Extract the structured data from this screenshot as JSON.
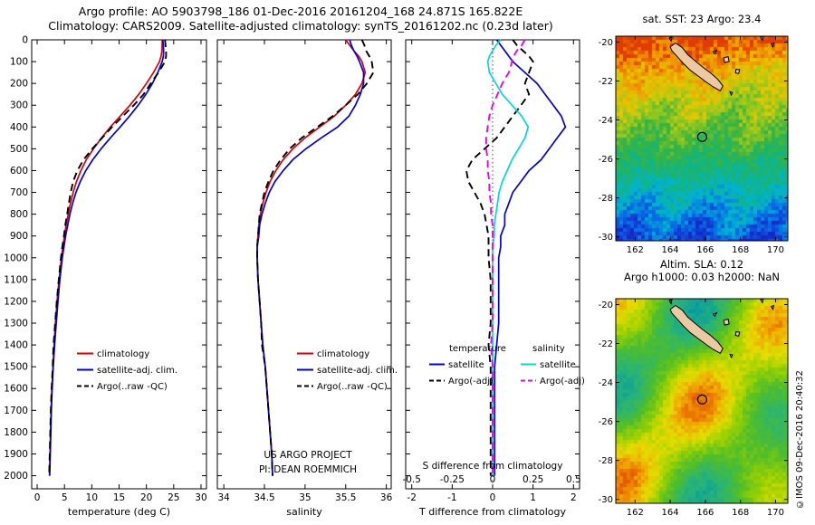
{
  "header": {
    "line1": "Argo profile: AO 5903798_186 01-Dec-2016 20161204_168 24.871S 165.822E",
    "line2": "Climatology: CARS2009. Satellite-adjusted climatology: synTS_20161202.nc (0.23d later)"
  },
  "stamp": "©IMOS 09-Dec-2016 20:40:32",
  "colors": {
    "climatology": "#dd0000",
    "satellite_clim": "#0000dd",
    "argo": "#000000",
    "sal_satellite": "#00d8e0",
    "sal_argo": "#ee00ee",
    "land": "#ecc9a2",
    "marker": "#111111"
  },
  "depths": [
    0,
    25,
    50,
    75,
    100,
    150,
    200,
    250,
    300,
    350,
    400,
    450,
    500,
    550,
    600,
    650,
    700,
    750,
    800,
    850,
    900,
    950,
    1000,
    1100,
    1200,
    1300,
    1400,
    1500,
    1600,
    1700,
    1800,
    1900,
    2000
  ],
  "chart_data": [
    {
      "id": "temperature_profile",
      "type": "line",
      "xlabel": "temperature (deg C)",
      "xlim": [
        -1,
        31
      ],
      "xticks": [
        0,
        5,
        10,
        15,
        20,
        25,
        30
      ],
      "xtick_labels": [
        "0",
        "5",
        "10",
        "15",
        "20",
        "25",
        "30"
      ],
      "ylim": [
        0,
        2060
      ],
      "yticks": [
        0,
        100,
        200,
        300,
        400,
        500,
        600,
        700,
        800,
        900,
        1000,
        1100,
        1200,
        1300,
        1400,
        1500,
        1600,
        1700,
        1800,
        1900,
        2000
      ],
      "y_inverted": true,
      "legend": [
        "climatology",
        "satellite-adj. clim.",
        "Argo(..raw -QC)"
      ],
      "series": [
        {
          "name": "climatology",
          "color": "#dd0000",
          "dash": "solid",
          "values": [
            22.9,
            22.9,
            22.85,
            22.7,
            22.4,
            21.3,
            20.0,
            18.6,
            17.0,
            15.2,
            13.4,
            11.8,
            10.3,
            9.0,
            8.0,
            7.2,
            6.6,
            6.1,
            5.7,
            5.3,
            5.0,
            4.7,
            4.45,
            4.0,
            3.65,
            3.35,
            3.1,
            2.9,
            2.7,
            2.55,
            2.45,
            2.35,
            2.25
          ]
        },
        {
          "name": "satellite-adj. clim.",
          "color": "#0000dd",
          "dash": "solid",
          "values": [
            23.0,
            23.1,
            23.15,
            23.1,
            22.9,
            22.1,
            21.1,
            19.9,
            18.5,
            16.9,
            15.2,
            13.4,
            11.7,
            10.2,
            8.9,
            7.9,
            7.1,
            6.5,
            6.0,
            5.6,
            5.2,
            4.9,
            4.6,
            4.15,
            3.8,
            3.5,
            3.2,
            2.95,
            2.75,
            2.6,
            2.5,
            2.4,
            2.3
          ]
        },
        {
          "name": "Argo(..raw -QC)",
          "color": "#000000",
          "dash": "dashed",
          "values": [
            23.4,
            23.5,
            23.6,
            23.6,
            23.4,
            22.2,
            20.8,
            19.5,
            17.7,
            15.7,
            13.7,
            11.9,
            10.1,
            8.5,
            7.35,
            6.6,
            6.15,
            5.8,
            5.5,
            5.15,
            4.9,
            4.6,
            4.35,
            3.95,
            3.6,
            3.3,
            3.0,
            2.85,
            2.65,
            2.5,
            2.4,
            2.3,
            2.2
          ]
        }
      ]
    },
    {
      "id": "salinity_profile",
      "type": "line",
      "xlabel": "salinity",
      "xlim": [
        33.92,
        36.06
      ],
      "xticks": [
        34,
        34.5,
        35,
        35.5,
        36
      ],
      "xtick_labels": [
        "34",
        "34.5",
        "35",
        "35.5",
        "36"
      ],
      "ylim": [
        0,
        2060
      ],
      "yticks": [
        0,
        100,
        200,
        300,
        400,
        500,
        600,
        700,
        800,
        900,
        1000,
        1100,
        1200,
        1300,
        1400,
        1500,
        1600,
        1700,
        1800,
        1900,
        2000
      ],
      "y_inverted": true,
      "legend": [
        "climatology",
        "satellite-adj. clim.",
        "Argo(..raw -QC)"
      ],
      "notes": [
        "US ARGO PROJECT",
        "PI: DEAN ROEMMICH"
      ],
      "series": [
        {
          "name": "climatology",
          "color": "#dd0000",
          "dash": "solid",
          "values": [
            35.5,
            35.55,
            35.6,
            35.66,
            35.7,
            35.74,
            35.7,
            35.62,
            35.5,
            35.36,
            35.18,
            35.0,
            34.85,
            34.73,
            34.64,
            34.57,
            34.52,
            34.48,
            34.45,
            34.43,
            34.42,
            34.41,
            34.41,
            34.42,
            34.44,
            34.46,
            34.48,
            34.51,
            34.53,
            34.55,
            34.57,
            34.59,
            34.6
          ]
        },
        {
          "name": "satellite-adj. clim.",
          "color": "#0000dd",
          "dash": "solid",
          "values": [
            35.55,
            35.57,
            35.6,
            35.64,
            35.67,
            35.72,
            35.72,
            35.68,
            35.62,
            35.54,
            35.4,
            35.2,
            35.01,
            34.85,
            34.73,
            34.63,
            34.56,
            34.51,
            34.47,
            34.44,
            34.43,
            34.41,
            34.41,
            34.42,
            34.44,
            34.46,
            34.48,
            34.51,
            34.53,
            34.55,
            34.57,
            34.59,
            34.6
          ]
        },
        {
          "name": "Argo(..raw -QC)",
          "color": "#000000",
          "dash": "dashed",
          "values": [
            35.7,
            35.73,
            35.75,
            35.79,
            35.82,
            35.84,
            35.76,
            35.65,
            35.5,
            35.34,
            35.15,
            34.96,
            34.81,
            34.7,
            34.61,
            34.55,
            34.5,
            34.47,
            34.44,
            34.43,
            34.42,
            34.41,
            34.41,
            34.42,
            34.44,
            34.46,
            34.47,
            34.51,
            34.53,
            34.55,
            34.57,
            34.59,
            34.6
          ]
        }
      ]
    },
    {
      "id": "difference_profile",
      "type": "line",
      "xlabel": "T difference from climatology",
      "xlim": [
        -2.15,
        2.15
      ],
      "xticks": [
        -2,
        -1,
        0,
        1,
        2
      ],
      "xtick_labels": [
        "-2",
        "-1",
        "0",
        "1",
        "2"
      ],
      "ylim": [
        0,
        2060
      ],
      "yticks": [
        0,
        100,
        200,
        300,
        400,
        500,
        600,
        700,
        800,
        900,
        1000,
        1100,
        1200,
        1300,
        1400,
        1500,
        1600,
        1700,
        1800,
        1900,
        2000
      ],
      "y_inverted": true,
      "zero_line": true,
      "secondary_axis": {
        "label": "S difference from climatology",
        "ticks": [
          -0.5,
          -0.25,
          0,
          0.25,
          0.5
        ],
        "tick_labels": [
          "-0.5",
          "-0.25",
          "0",
          "0.25",
          "0.5"
        ],
        "scale": 4
      },
      "legend_grid": {
        "headers": [
          "temperature",
          "salinity"
        ],
        "rows": [
          [
            "satellite",
            "satellite"
          ],
          [
            "Argo(-adj)",
            "Argo(-adj)"
          ]
        ]
      },
      "series": [
        {
          "name": "T satellite",
          "color": "#0000dd",
          "dash": "solid",
          "scale": 1,
          "values": [
            0.1,
            0.2,
            0.3,
            0.4,
            0.5,
            0.8,
            1.1,
            1.3,
            1.5,
            1.7,
            1.8,
            1.6,
            1.4,
            1.2,
            0.9,
            0.7,
            0.5,
            0.4,
            0.3,
            0.3,
            0.2,
            0.2,
            0.15,
            0.15,
            0.15,
            0.15,
            0.1,
            0.05,
            0.05,
            0.05,
            0.05,
            0.05,
            0.05
          ]
        },
        {
          "name": "T Argo(-adj)",
          "color": "#000000",
          "dash": "dashed",
          "scale": 1,
          "values": [
            0.5,
            0.6,
            0.75,
            0.9,
            1.0,
            0.9,
            0.8,
            0.9,
            0.7,
            0.5,
            0.3,
            0.1,
            -0.2,
            -0.5,
            -0.65,
            -0.6,
            -0.45,
            -0.3,
            -0.2,
            -0.15,
            -0.1,
            -0.1,
            -0.1,
            -0.05,
            -0.05,
            -0.05,
            -0.1,
            -0.05,
            -0.05,
            -0.05,
            -0.05,
            -0.05,
            -0.05
          ]
        },
        {
          "name": "S satellite",
          "color": "#00d8e0",
          "dash": "solid",
          "scale": 4,
          "values": [
            0.05,
            0.02,
            0.0,
            -0.02,
            -0.03,
            -0.02,
            0.02,
            0.06,
            0.12,
            0.18,
            0.22,
            0.2,
            0.16,
            0.12,
            0.09,
            0.06,
            0.04,
            0.03,
            0.02,
            0.01,
            0.01,
            0.0,
            0.0,
            0.0,
            0.0,
            0.0,
            0.0,
            0.0,
            0.0,
            0.0,
            0.0,
            0.0,
            0.0
          ]
        },
        {
          "name": "S Argo(-adj)",
          "color": "#ee00ee",
          "dash": "dashed",
          "scale": 4,
          "values": [
            0.2,
            0.18,
            0.15,
            0.13,
            0.12,
            0.1,
            0.06,
            0.03,
            0.0,
            -0.02,
            -0.03,
            -0.04,
            -0.04,
            -0.03,
            -0.03,
            -0.02,
            -0.02,
            -0.01,
            -0.01,
            0.0,
            0.0,
            0.0,
            0.0,
            0.0,
            0.0,
            0.0,
            -0.01,
            0.0,
            0.0,
            0.0,
            0.0,
            0.0,
            0.0
          ]
        }
      ]
    },
    {
      "id": "sst_map",
      "type": "heatmap",
      "title": "sat. SST: 23 Argo: 23.4",
      "lon_range": [
        160.9,
        170.7
      ],
      "lat_range": [
        -30.2,
        -19.7
      ],
      "xticks": [
        162,
        164,
        166,
        168,
        170
      ],
      "xtick_labels": [
        "162",
        "164",
        "166",
        "168",
        "170"
      ],
      "yticks": [
        -20,
        -22,
        -24,
        -26,
        -28,
        -30
      ],
      "ytick_labels": [
        "-20",
        "-22",
        "-24",
        "-26",
        "-28",
        "-30"
      ],
      "marker": {
        "lon": 165.822,
        "lat": -24.871
      },
      "field": "sst"
    },
    {
      "id": "sla_map",
      "type": "heatmap",
      "title": "Altim. SLA: 0.12",
      "title2": "Argo h1000: 0.03 h2000: NaN",
      "lon_range": [
        160.9,
        170.7
      ],
      "lat_range": [
        -30.2,
        -19.7
      ],
      "xticks": [
        162,
        164,
        166,
        168,
        170
      ],
      "xtick_labels": [
        "162",
        "164",
        "166",
        "168",
        "170"
      ],
      "yticks": [
        -20,
        -22,
        -24,
        -26,
        -28,
        -30
      ],
      "ytick_labels": [
        "-20",
        "-22",
        "-24",
        "-26",
        "-28",
        "-30"
      ],
      "marker": {
        "lon": 165.822,
        "lat": -24.871
      },
      "field": "sla"
    }
  ],
  "map_overlay": {
    "mainland": [
      [
        164.0,
        -20.25
      ],
      [
        164.3,
        -20.05
      ],
      [
        164.7,
        -20.3
      ],
      [
        165.0,
        -20.65
      ],
      [
        165.4,
        -20.95
      ],
      [
        165.8,
        -21.25
      ],
      [
        166.25,
        -21.55
      ],
      [
        166.7,
        -21.9
      ],
      [
        167.0,
        -22.25
      ],
      [
        166.85,
        -22.5
      ],
      [
        166.45,
        -22.3
      ],
      [
        166.05,
        -22.05
      ],
      [
        165.6,
        -21.75
      ],
      [
        165.15,
        -21.45
      ],
      [
        164.75,
        -21.1
      ],
      [
        164.4,
        -20.75
      ],
      [
        164.1,
        -20.45
      ]
    ],
    "islands": [
      [
        [
          163.95,
          -19.8
        ],
        [
          164.1,
          -19.75
        ],
        [
          164.05,
          -19.95
        ]
      ],
      [
        [
          166.45,
          -20.5
        ],
        [
          166.65,
          -20.42
        ],
        [
          166.55,
          -20.6
        ]
      ],
      [
        [
          167.05,
          -20.8
        ],
        [
          167.3,
          -20.75
        ],
        [
          167.35,
          -21.0
        ],
        [
          167.1,
          -21.05
        ]
      ],
      [
        [
          167.75,
          -21.4
        ],
        [
          167.95,
          -21.42
        ],
        [
          167.9,
          -21.62
        ],
        [
          167.72,
          -21.58
        ]
      ],
      [
        [
          167.4,
          -22.55
        ],
        [
          167.55,
          -22.58
        ],
        [
          167.48,
          -22.72
        ]
      ],
      [
        [
          169.15,
          -19.75
        ],
        [
          169.3,
          -19.7
        ],
        [
          169.25,
          -19.9
        ]
      ],
      [
        [
          169.75,
          -20.1
        ],
        [
          169.9,
          -20.05
        ],
        [
          169.85,
          -20.25
        ]
      ]
    ]
  },
  "palettes": {
    "sst": [
      [
        0,
        "#1428c8"
      ],
      [
        0.12,
        "#0a64e6"
      ],
      [
        0.26,
        "#00b4d2"
      ],
      [
        0.4,
        "#14b478"
      ],
      [
        0.53,
        "#3cb43c"
      ],
      [
        0.66,
        "#96c81e"
      ],
      [
        0.78,
        "#e6c800"
      ],
      [
        0.9,
        "#f09600"
      ],
      [
        1,
        "#e13c00"
      ]
    ],
    "sla": [
      [
        0,
        "#0096aa"
      ],
      [
        0.2,
        "#28b478"
      ],
      [
        0.4,
        "#50be28"
      ],
      [
        0.6,
        "#a0d200"
      ],
      [
        0.75,
        "#e6dc00"
      ],
      [
        0.88,
        "#f0a000"
      ],
      [
        1,
        "#e65a00"
      ]
    ]
  }
}
